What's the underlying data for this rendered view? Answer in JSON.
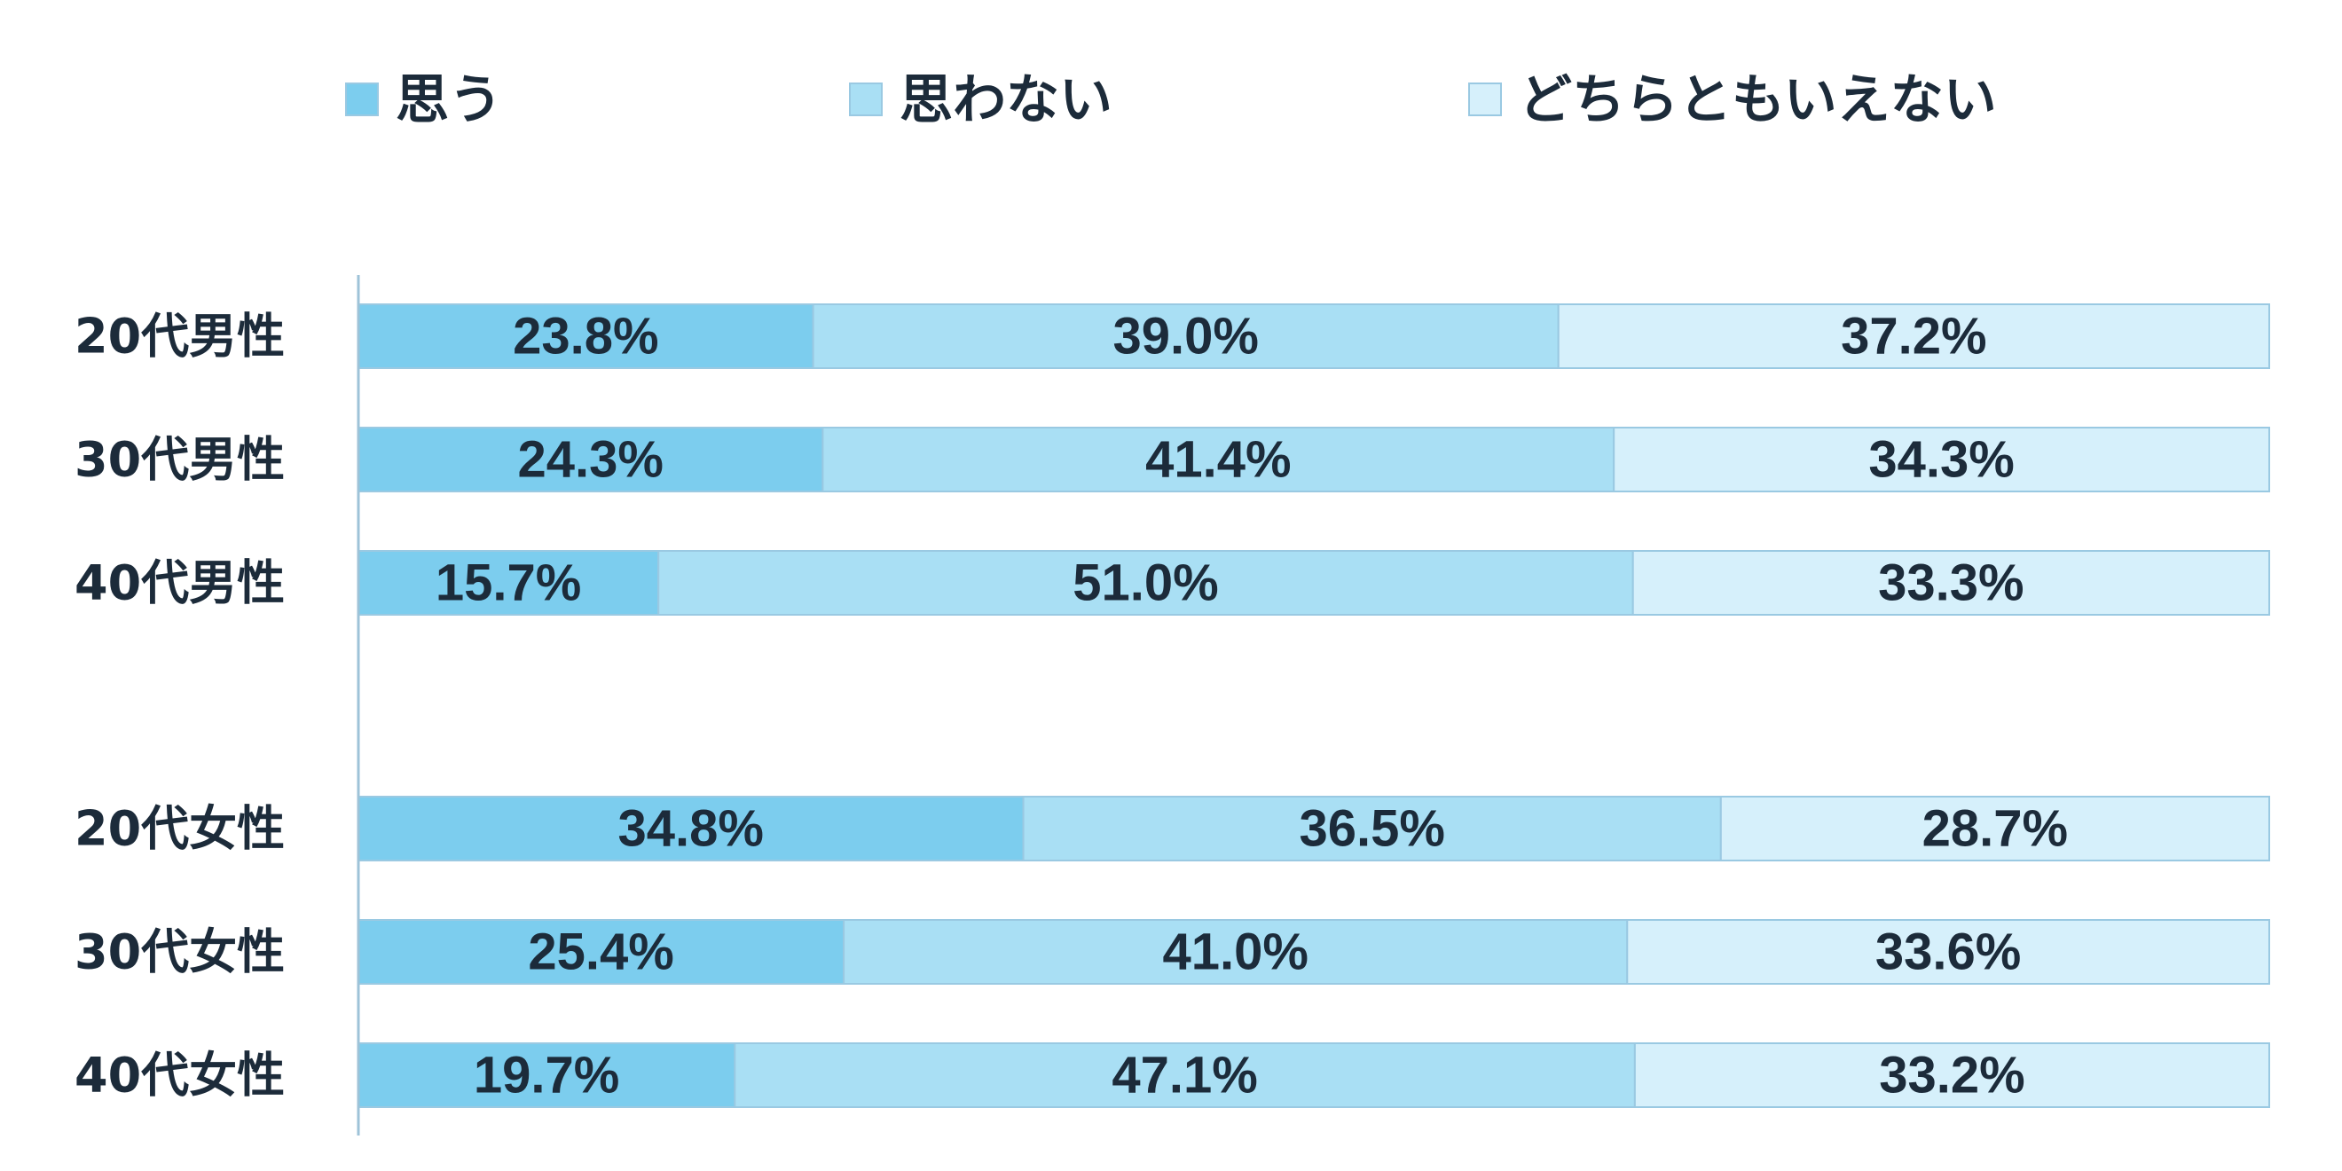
{
  "chart_data": {
    "type": "bar",
    "orientation": "horizontal",
    "stacked": "percent",
    "legend_position": "top",
    "grid": false,
    "xlim": [
      0,
      100
    ],
    "categories": [
      "20代男性",
      "30代男性",
      "40代男性",
      "20代女性",
      "30代女性",
      "40代女性"
    ],
    "series": [
      {
        "name": "思う",
        "color": "#7ccdee",
        "values": [
          23.8,
          24.3,
          15.7,
          34.8,
          25.4,
          19.7
        ],
        "labels": [
          "23.8%",
          "24.3%",
          "15.7%",
          "34.8%",
          "25.4%",
          "19.7%"
        ]
      },
      {
        "name": "思わない",
        "color": "#a9dff4",
        "values": [
          39.0,
          41.4,
          51.0,
          36.5,
          41.0,
          47.1
        ],
        "labels": [
          "39.0%",
          "41.4%",
          "51.0%",
          "36.5%",
          "41.0%",
          "47.1%"
        ]
      },
      {
        "name": "どちらともいえない",
        "color": "#d6f0fb",
        "values": [
          37.2,
          34.3,
          33.3,
          28.7,
          33.6,
          33.2
        ],
        "labels": [
          "37.2%",
          "34.3%",
          "33.3%",
          "28.7%",
          "33.6%",
          "33.2%"
        ]
      }
    ],
    "colors": {
      "border": "#9ac9e2",
      "axis": "#9ec3d8",
      "text": "#1c2b3a"
    }
  }
}
